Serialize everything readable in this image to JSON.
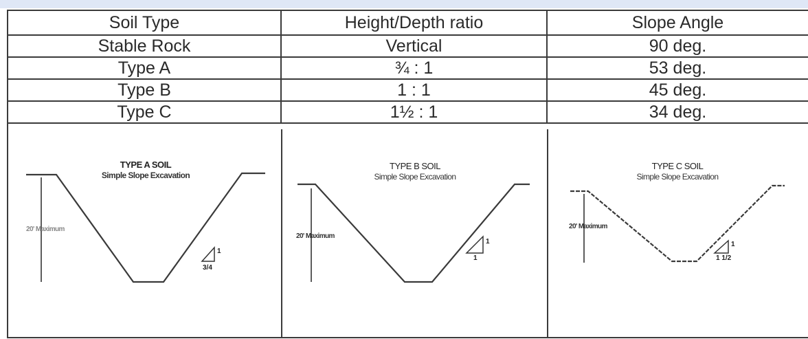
{
  "table": {
    "headers": [
      "Soil Type",
      "Height/Depth ratio",
      "Slope Angle"
    ],
    "rows": [
      [
        "Stable Rock",
        "Vertical",
        "90 deg."
      ],
      [
        "Type A",
        "¾ : 1",
        "53 deg."
      ],
      [
        "Type B",
        "1 : 1",
        "45 deg."
      ],
      [
        "Type C",
        "1½ : 1",
        "34 deg."
      ]
    ]
  },
  "diagrams": [
    {
      "title": "TYPE A SOIL",
      "subtitle": "Simple Slope Excavation",
      "depth_label": "20' Maximum",
      "rise_label": "1",
      "run_label": "3/4"
    },
    {
      "title": "TYPE B SOIL",
      "subtitle": "Simple Slope Excavation",
      "depth_label": "20' Maximum",
      "rise_label": "1",
      "run_label": "1"
    },
    {
      "title": "TYPE C SOIL",
      "subtitle": "Simple Slope Excavation",
      "depth_label": "20' Maximum",
      "rise_label": "1",
      "run_label": "1 1/2"
    }
  ]
}
